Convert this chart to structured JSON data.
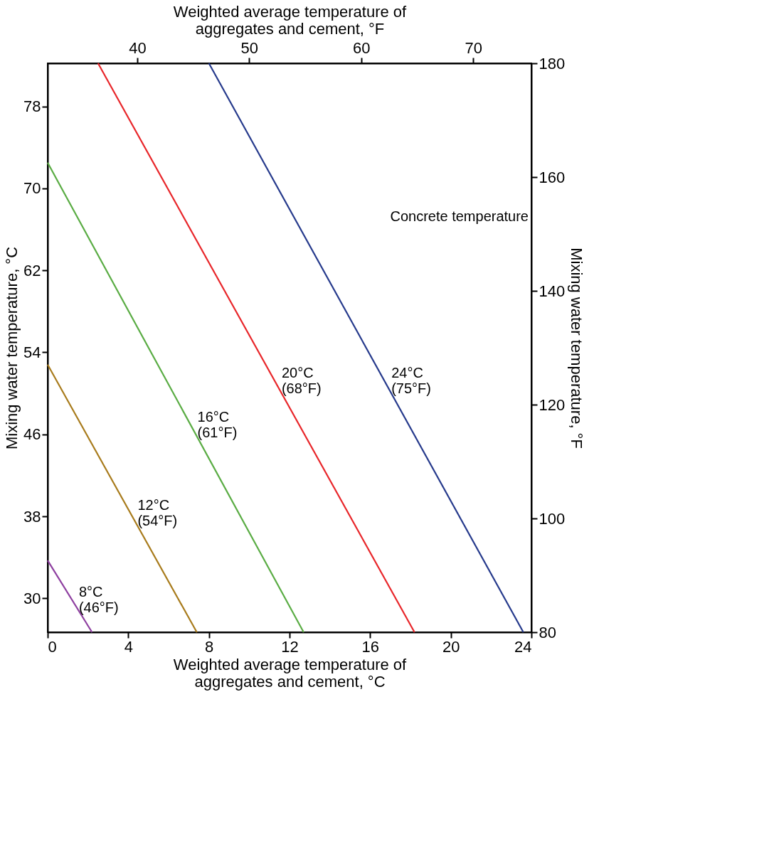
{
  "chart_data": {
    "type": "line",
    "xlabel": "Weighted average temperature of\naggregates and cement, °C",
    "x2label": "Weighted average temperature of\naggregates and cement, °F",
    "ylabel": "Mixing water temperature, °C",
    "y2label": "Mixing water temperature, °F",
    "xlim": [
      0,
      24
    ],
    "xticks": [
      0,
      4,
      8,
      12,
      16,
      20,
      24
    ],
    "x2lim": [
      32,
      75.2
    ],
    "x2ticks": [
      40,
      50,
      60,
      70
    ],
    "ylim": [
      26.7,
      82.2
    ],
    "yticks": [
      30,
      38,
      46,
      54,
      62,
      70,
      78
    ],
    "y2lim": [
      80,
      180
    ],
    "y2ticks": [
      80,
      100,
      120,
      140,
      160,
      180
    ],
    "grid": false,
    "marker": "none",
    "line_style": "solid",
    "series": [
      {
        "name": "8°C (46°F)",
        "color": "#8e3fa0",
        "x": [
          0,
          2.2
        ],
        "values": [
          33.7,
          26.7
        ]
      },
      {
        "name": "12°C (54°F)",
        "color": "#a87b1c",
        "x": [
          0,
          7.4
        ],
        "values": [
          52.8,
          26.7
        ]
      },
      {
        "name": "16°C (61°F)",
        "color": "#5aac44",
        "x": [
          0,
          12.7
        ],
        "values": [
          72.5,
          26.7
        ]
      },
      {
        "name": "20°C (68°F)",
        "color": "#e8262a",
        "x": [
          2.5,
          18.2
        ],
        "values": [
          82.2,
          26.7
        ]
      },
      {
        "name": "24°C (75°F)",
        "color": "#263a8c",
        "x": [
          8.0,
          23.6
        ],
        "values": [
          82.2,
          26.7
        ]
      }
    ],
    "annotations": [
      "Concrete temperature"
    ]
  }
}
